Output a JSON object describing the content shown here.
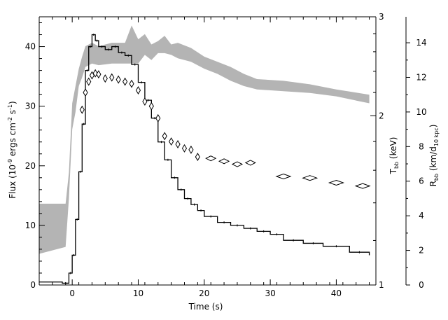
{
  "chart_data": {
    "type": "line",
    "title": "",
    "x": {
      "label": "Time (s)",
      "range": [
        -5,
        46
      ],
      "ticks": [
        0,
        10,
        20,
        30,
        40
      ]
    },
    "y_left": {
      "label_parts": [
        "Flux (10",
        "-9",
        " ergs cm",
        "-2",
        " s",
        "-1",
        ")"
      ],
      "range": [
        0,
        45
      ],
      "ticks": [
        0,
        10,
        20,
        30,
        40
      ]
    },
    "y_right1": {
      "label_main": "T",
      "label_sub": "bb",
      "label_tail": " (keV)",
      "scale": "log",
      "range": [
        1,
        3
      ],
      "ticks": [
        1,
        2,
        3
      ]
    },
    "y_right2": {
      "label_main": "R",
      "label_sub": "bb",
      "label_mid": " (km/d",
      "label_sub2": "10 kpc",
      "label_tail": ")",
      "range": [
        0,
        15.5
      ],
      "ticks": [
        0,
        2,
        4,
        6,
        8,
        10,
        12,
        14
      ]
    },
    "series": [
      {
        "style": "step",
        "axis": "left",
        "color": "#000000",
        "points": [
          [
            -5.0,
            0.5
          ],
          [
            -1.5,
            0.3
          ],
          [
            -0.5,
            2.0
          ],
          [
            0.0,
            5.0
          ],
          [
            0.5,
            11.0
          ],
          [
            1.0,
            19.0
          ],
          [
            1.5,
            27.0
          ],
          [
            2.0,
            36.0
          ],
          [
            2.5,
            40.0
          ],
          [
            3.0,
            42.0
          ],
          [
            3.5,
            41.0
          ],
          [
            4.0,
            40.0
          ],
          [
            5.0,
            39.5
          ],
          [
            6.0,
            40.0
          ],
          [
            7.0,
            39.0
          ],
          [
            8.0,
            38.5
          ],
          [
            9.0,
            37.0
          ],
          [
            10.0,
            34.0
          ],
          [
            11.0,
            31.0
          ],
          [
            12.0,
            28.0
          ],
          [
            13.0,
            24.0
          ],
          [
            14.0,
            21.0
          ],
          [
            15.0,
            18.0
          ],
          [
            16.0,
            16.0
          ],
          [
            17.0,
            14.5
          ],
          [
            18.0,
            13.5
          ],
          [
            19.0,
            12.5
          ],
          [
            20.0,
            11.5
          ],
          [
            22.0,
            10.5
          ],
          [
            24.0,
            10.0
          ],
          [
            26.0,
            9.5
          ],
          [
            28.0,
            9.0
          ],
          [
            30.0,
            8.5
          ],
          [
            32.0,
            7.5
          ],
          [
            35.0,
            7.0
          ],
          [
            38.0,
            6.5
          ],
          [
            42.0,
            5.5
          ],
          [
            45.0,
            5.0
          ]
        ]
      },
      {
        "style": "markers",
        "marker": "diamond",
        "axis": "right1",
        "color": "#000000",
        "points": [
          [
            1.5,
            2.05
          ],
          [
            2.0,
            2.2
          ],
          [
            2.5,
            2.3
          ],
          [
            3.0,
            2.36
          ],
          [
            3.5,
            2.38
          ],
          [
            4.0,
            2.37
          ],
          [
            5.0,
            2.33
          ],
          [
            6.0,
            2.34
          ],
          [
            7.0,
            2.32
          ],
          [
            8.0,
            2.3
          ],
          [
            9.0,
            2.28
          ],
          [
            10.0,
            2.22
          ],
          [
            11.0,
            2.12
          ],
          [
            12.0,
            2.08
          ],
          [
            13.0,
            1.98
          ],
          [
            14.0,
            1.84
          ],
          [
            15.0,
            1.8
          ],
          [
            16.0,
            1.78
          ],
          [
            17.0,
            1.75
          ],
          [
            18.0,
            1.74
          ],
          [
            19.0,
            1.69
          ],
          [
            21.0,
            1.68
          ],
          [
            23.0,
            1.66
          ],
          [
            25.0,
            1.64
          ],
          [
            27.0,
            1.65
          ],
          [
            32.0,
            1.56
          ],
          [
            36.0,
            1.55
          ],
          [
            40.0,
            1.52
          ],
          [
            44.0,
            1.5
          ]
        ]
      },
      {
        "style": "band",
        "axis": "right2",
        "color": "#b4b4b4",
        "lower": [
          [
            -5.0,
            1.8
          ],
          [
            -1.0,
            2.2
          ],
          [
            -0.5,
            5.0
          ],
          [
            0.0,
            9.0
          ],
          [
            0.5,
            10.0
          ],
          [
            1.0,
            11.5
          ],
          [
            1.5,
            12.0
          ],
          [
            2.0,
            12.6
          ],
          [
            3.0,
            12.8
          ],
          [
            4.0,
            12.7
          ],
          [
            6.0,
            12.8
          ],
          [
            8.0,
            12.8
          ],
          [
            10.0,
            12.8
          ],
          [
            11.0,
            13.3
          ],
          [
            12.0,
            13.0
          ],
          [
            13.0,
            13.4
          ],
          [
            14.0,
            13.4
          ],
          [
            15.0,
            13.3
          ],
          [
            16.0,
            13.1
          ],
          [
            18.0,
            12.9
          ],
          [
            20.0,
            12.5
          ],
          [
            22.0,
            12.2
          ],
          [
            24.0,
            11.8
          ],
          [
            26.0,
            11.5
          ],
          [
            28.0,
            11.3
          ],
          [
            32.0,
            11.2
          ],
          [
            36.0,
            11.1
          ],
          [
            40.0,
            10.9
          ],
          [
            45.0,
            10.5
          ]
        ],
        "upper": [
          [
            -5.0,
            4.7
          ],
          [
            -1.0,
            4.7
          ],
          [
            -0.5,
            6.5
          ],
          [
            0.0,
            10.5
          ],
          [
            0.5,
            11.5
          ],
          [
            1.0,
            12.5
          ],
          [
            1.5,
            13.2
          ],
          [
            2.0,
            13.8
          ],
          [
            3.0,
            14.0
          ],
          [
            4.0,
            13.8
          ],
          [
            6.0,
            14.0
          ],
          [
            8.0,
            14.0
          ],
          [
            9.0,
            15.0
          ],
          [
            10.0,
            14.2
          ],
          [
            11.0,
            14.5
          ],
          [
            12.0,
            13.9
          ],
          [
            13.0,
            14.1
          ],
          [
            14.0,
            14.4
          ],
          [
            15.0,
            13.9
          ],
          [
            16.0,
            14.0
          ],
          [
            18.0,
            13.7
          ],
          [
            20.0,
            13.2
          ],
          [
            22.0,
            12.9
          ],
          [
            24.0,
            12.6
          ],
          [
            26.0,
            12.2
          ],
          [
            28.0,
            11.9
          ],
          [
            32.0,
            11.8
          ],
          [
            36.0,
            11.6
          ],
          [
            40.0,
            11.3
          ],
          [
            45.0,
            11.0
          ]
        ]
      }
    ]
  }
}
